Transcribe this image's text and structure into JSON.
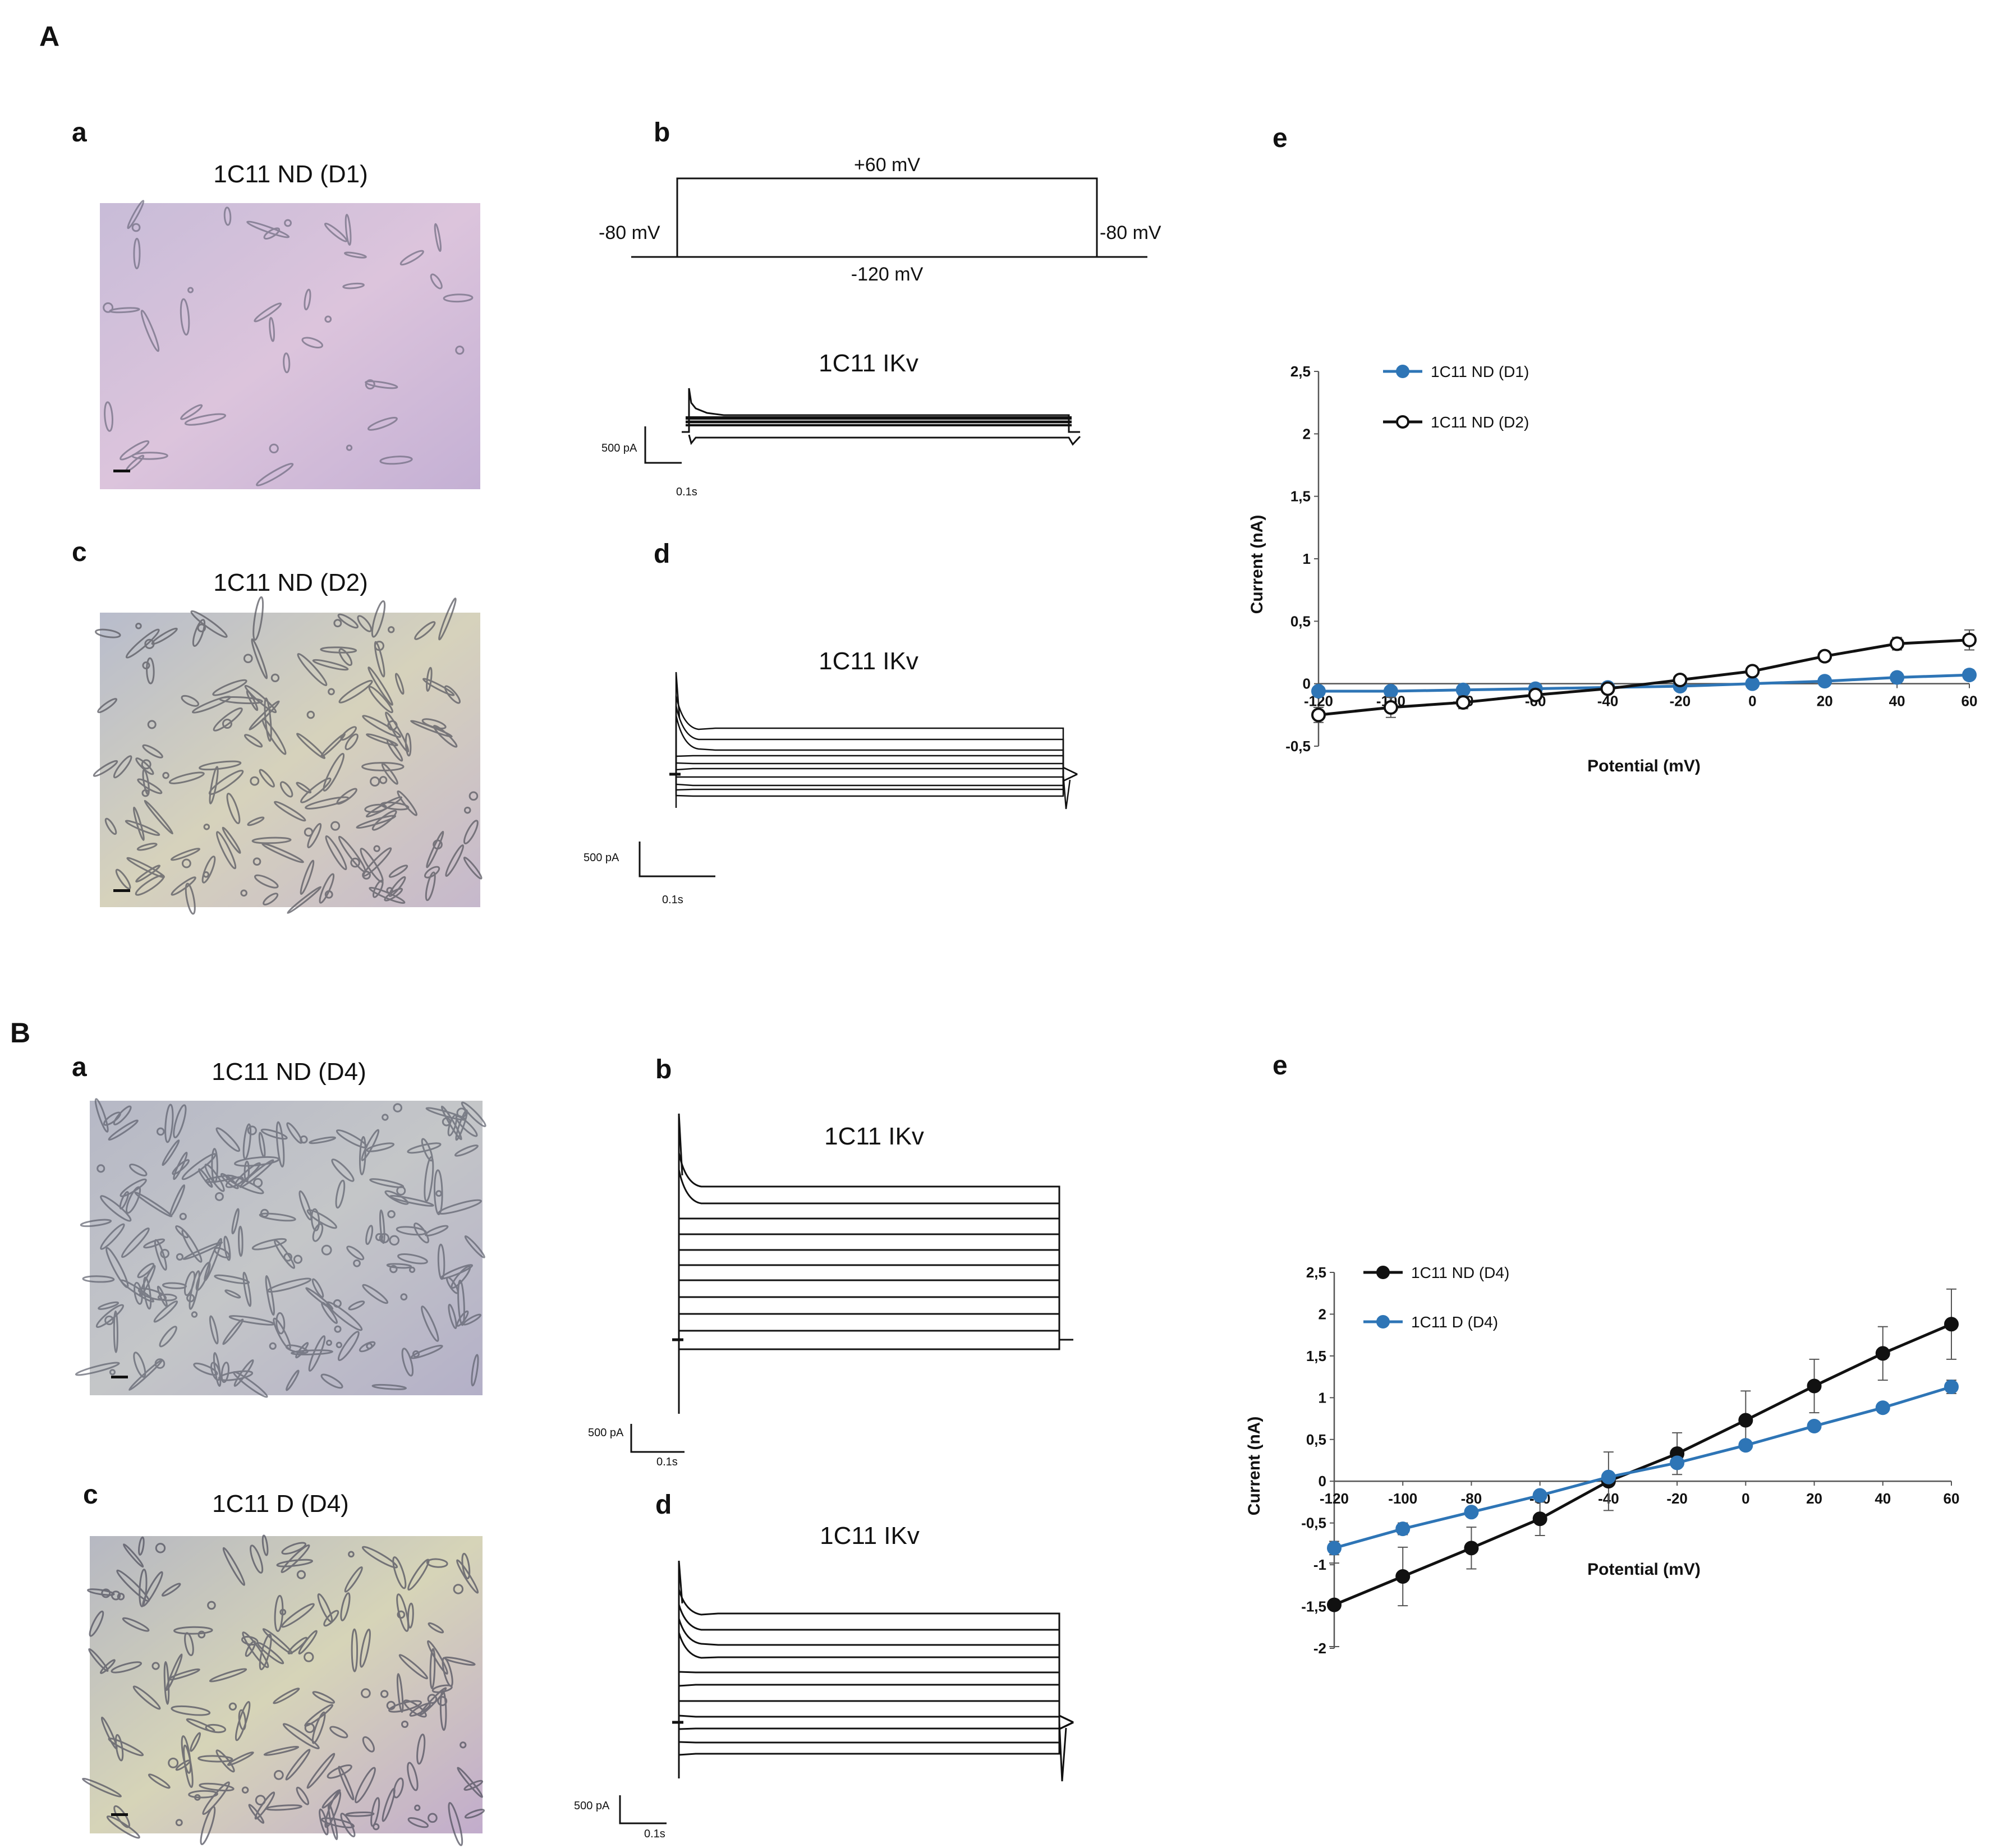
{
  "figure": {
    "section_a": "A",
    "section_b": "B",
    "panel_a": {
      "a_label": "a",
      "a_title": "1C11 ND (D1)",
      "b_label": "b",
      "volt_top": "+60 mV",
      "volt_bottom": "-120 mV",
      "volt_left": "-80 mV",
      "volt_right": "-80 mV",
      "b_trace_title": "1C11 IKv",
      "b_scale_current": "500 pA",
      "b_scale_time": "0.1s",
      "c_label": "c",
      "c_title": "1C11 ND (D2)",
      "d_label": "d",
      "d_trace_title": "1C11 IKv",
      "d_scale_current": "500 pA",
      "d_scale_time": "0.1s",
      "e_label": "e"
    },
    "panel_b": {
      "a_label": "a",
      "a_title": "1C11 ND (D4)",
      "b_label": "b",
      "b_trace_title": "1C11 IKv",
      "b_scale_current": "500 pA",
      "b_scale_time": "0.1s",
      "c_label": "c",
      "c_title": "1C11 D (D4)",
      "d_label": "d",
      "d_trace_title": "1C11 IKv",
      "d_scale_current": "500 pA",
      "d_scale_time": "0.1s",
      "e_label": "e"
    }
  },
  "colors": {
    "blue": "#2E75B6",
    "black": "#111111"
  },
  "chart_data": [
    {
      "type": "line",
      "id": "A-e",
      "title": "",
      "xlabel": "Potential (mV)",
      "ylabel": "Current (nA)",
      "x": [
        -120,
        -100,
        -80,
        -60,
        -40,
        -20,
        0,
        20,
        40,
        60
      ],
      "xlim": [
        -120,
        60
      ],
      "ylim": [
        -0.5,
        2.5
      ],
      "x_ticks": [
        -120,
        -100,
        -80,
        -60,
        -40,
        -20,
        0,
        20,
        40,
        60
      ],
      "x_tick_labels": [
        "-120",
        "-100",
        "-80",
        "-60",
        "-40",
        "-20",
        "0",
        "20",
        "40",
        "60"
      ],
      "y_ticks": [
        -0.5,
        0,
        0.5,
        1,
        1.5,
        2,
        2.5
      ],
      "y_tick_labels": [
        "-0,5",
        "0",
        "0,5",
        "1",
        "1,5",
        "2",
        "2,5"
      ],
      "legend_position": "top-left",
      "series": [
        {
          "name": "1C11 ND (D1)",
          "color": "#2E75B6",
          "marker": "filled",
          "values": [
            -0.06,
            -0.06,
            -0.05,
            -0.04,
            -0.03,
            -0.02,
            0.0,
            0.02,
            0.05,
            0.07
          ],
          "errors": [
            0.02,
            0.02,
            0.02,
            0.02,
            0.02,
            0.02,
            0.02,
            0.03,
            0.04,
            0.04
          ]
        },
        {
          "name": "1C11 ND (D2)",
          "color": "#111111",
          "marker": "open",
          "values": [
            -0.25,
            -0.19,
            -0.15,
            -0.09,
            -0.04,
            0.03,
            0.1,
            0.22,
            0.32,
            0.35
          ],
          "errors": [
            0.06,
            0.08,
            0.05,
            0.03,
            0.02,
            0.02,
            0.04,
            0.04,
            0.05,
            0.08
          ]
        }
      ]
    },
    {
      "type": "line",
      "id": "B-e",
      "title": "",
      "xlabel": "Potential (mV)",
      "ylabel": "Current (nA)",
      "x": [
        -120,
        -100,
        -80,
        -60,
        -40,
        -20,
        0,
        20,
        40,
        60
      ],
      "xlim": [
        -120,
        60
      ],
      "ylim": [
        -2,
        2.5
      ],
      "x_ticks": [
        -120,
        -100,
        -80,
        -60,
        -40,
        -20,
        0,
        20,
        40,
        60
      ],
      "x_tick_labels": [
        "-120",
        "-100",
        "-80",
        "-60",
        "-40",
        "-20",
        "0",
        "20",
        "40",
        "60"
      ],
      "y_ticks": [
        -2,
        -1.5,
        -1,
        -0.5,
        0,
        0.5,
        1,
        1.5,
        2,
        2.5
      ],
      "y_tick_labels": [
        "-2",
        "-1,5",
        "-1",
        "-0,5",
        "0",
        "0,5",
        "1",
        "1,5",
        "2",
        "2,5"
      ],
      "legend_position": "top-left",
      "series": [
        {
          "name": "1C11 ND (D4)",
          "color": "#111111",
          "marker": "filled",
          "values": [
            -1.48,
            -1.14,
            -0.8,
            -0.45,
            0.0,
            0.33,
            0.73,
            1.14,
            1.53,
            1.88
          ],
          "errors": [
            0.5,
            0.35,
            0.25,
            0.2,
            0.35,
            0.25,
            0.35,
            0.32,
            0.32,
            0.42
          ]
        },
        {
          "name": "1C11 D (D4)",
          "color": "#2E75B6",
          "marker": "filled",
          "values": [
            -0.8,
            -0.57,
            -0.37,
            -0.17,
            0.05,
            0.22,
            0.43,
            0.66,
            0.88,
            1.13
          ],
          "errors": [
            0.08,
            0.07,
            0.05,
            0.04,
            0.04,
            0.04,
            0.04,
            0.04,
            0.05,
            0.08
          ]
        }
      ]
    }
  ]
}
